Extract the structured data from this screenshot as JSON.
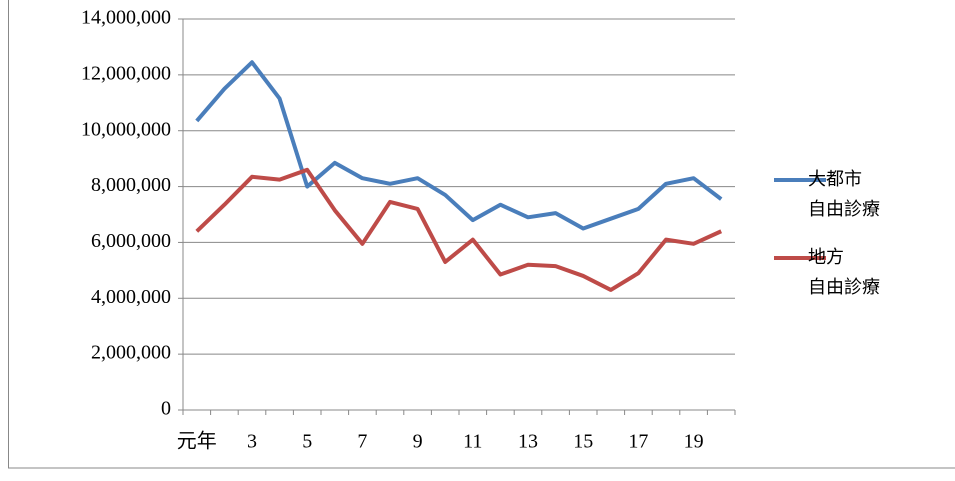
{
  "chart_data": {
    "type": "line",
    "categories": [
      "元年",
      null,
      "3",
      null,
      "5",
      null,
      "7",
      null,
      "9",
      null,
      "11",
      null,
      "13",
      null,
      "15",
      null,
      "17",
      null,
      "19",
      null
    ],
    "series": [
      {
        "name": "大都市\n自由診療",
        "color": "#4a7ebb",
        "values": [
          10350000,
          11500000,
          12450000,
          11150000,
          8000000,
          8850000,
          8300000,
          8100000,
          8300000,
          7700000,
          6800000,
          7350000,
          6900000,
          7050000,
          6500000,
          6850000,
          7200000,
          8100000,
          8300000,
          7550000
        ]
      },
      {
        "name": "地方\n自由診療",
        "color": "#be4b48",
        "values": [
          6400000,
          7350000,
          8350000,
          8250000,
          8600000,
          7150000,
          5950000,
          7450000,
          7200000,
          5300000,
          6100000,
          4850000,
          5200000,
          5150000,
          4800000,
          4300000,
          4900000,
          6100000,
          5950000,
          6400000
        ]
      }
    ],
    "ylim": [
      0,
      14000000
    ],
    "yticks": [
      0,
      {
        "value": 2000000,
        "label": "2,000,000"
      },
      {
        "value": 4000000,
        "label": "4,000,000"
      },
      {
        "value": 6000000,
        "label": "6,000,000"
      },
      {
        "value": 8000000,
        "label": "8,000,000"
      },
      {
        "value": 10000000,
        "label": "10,000,000"
      },
      {
        "value": 12000000,
        "label": "12,000,000"
      },
      {
        "value": 14000000,
        "label": "14,000,000"
      }
    ],
    "grid": true
  }
}
